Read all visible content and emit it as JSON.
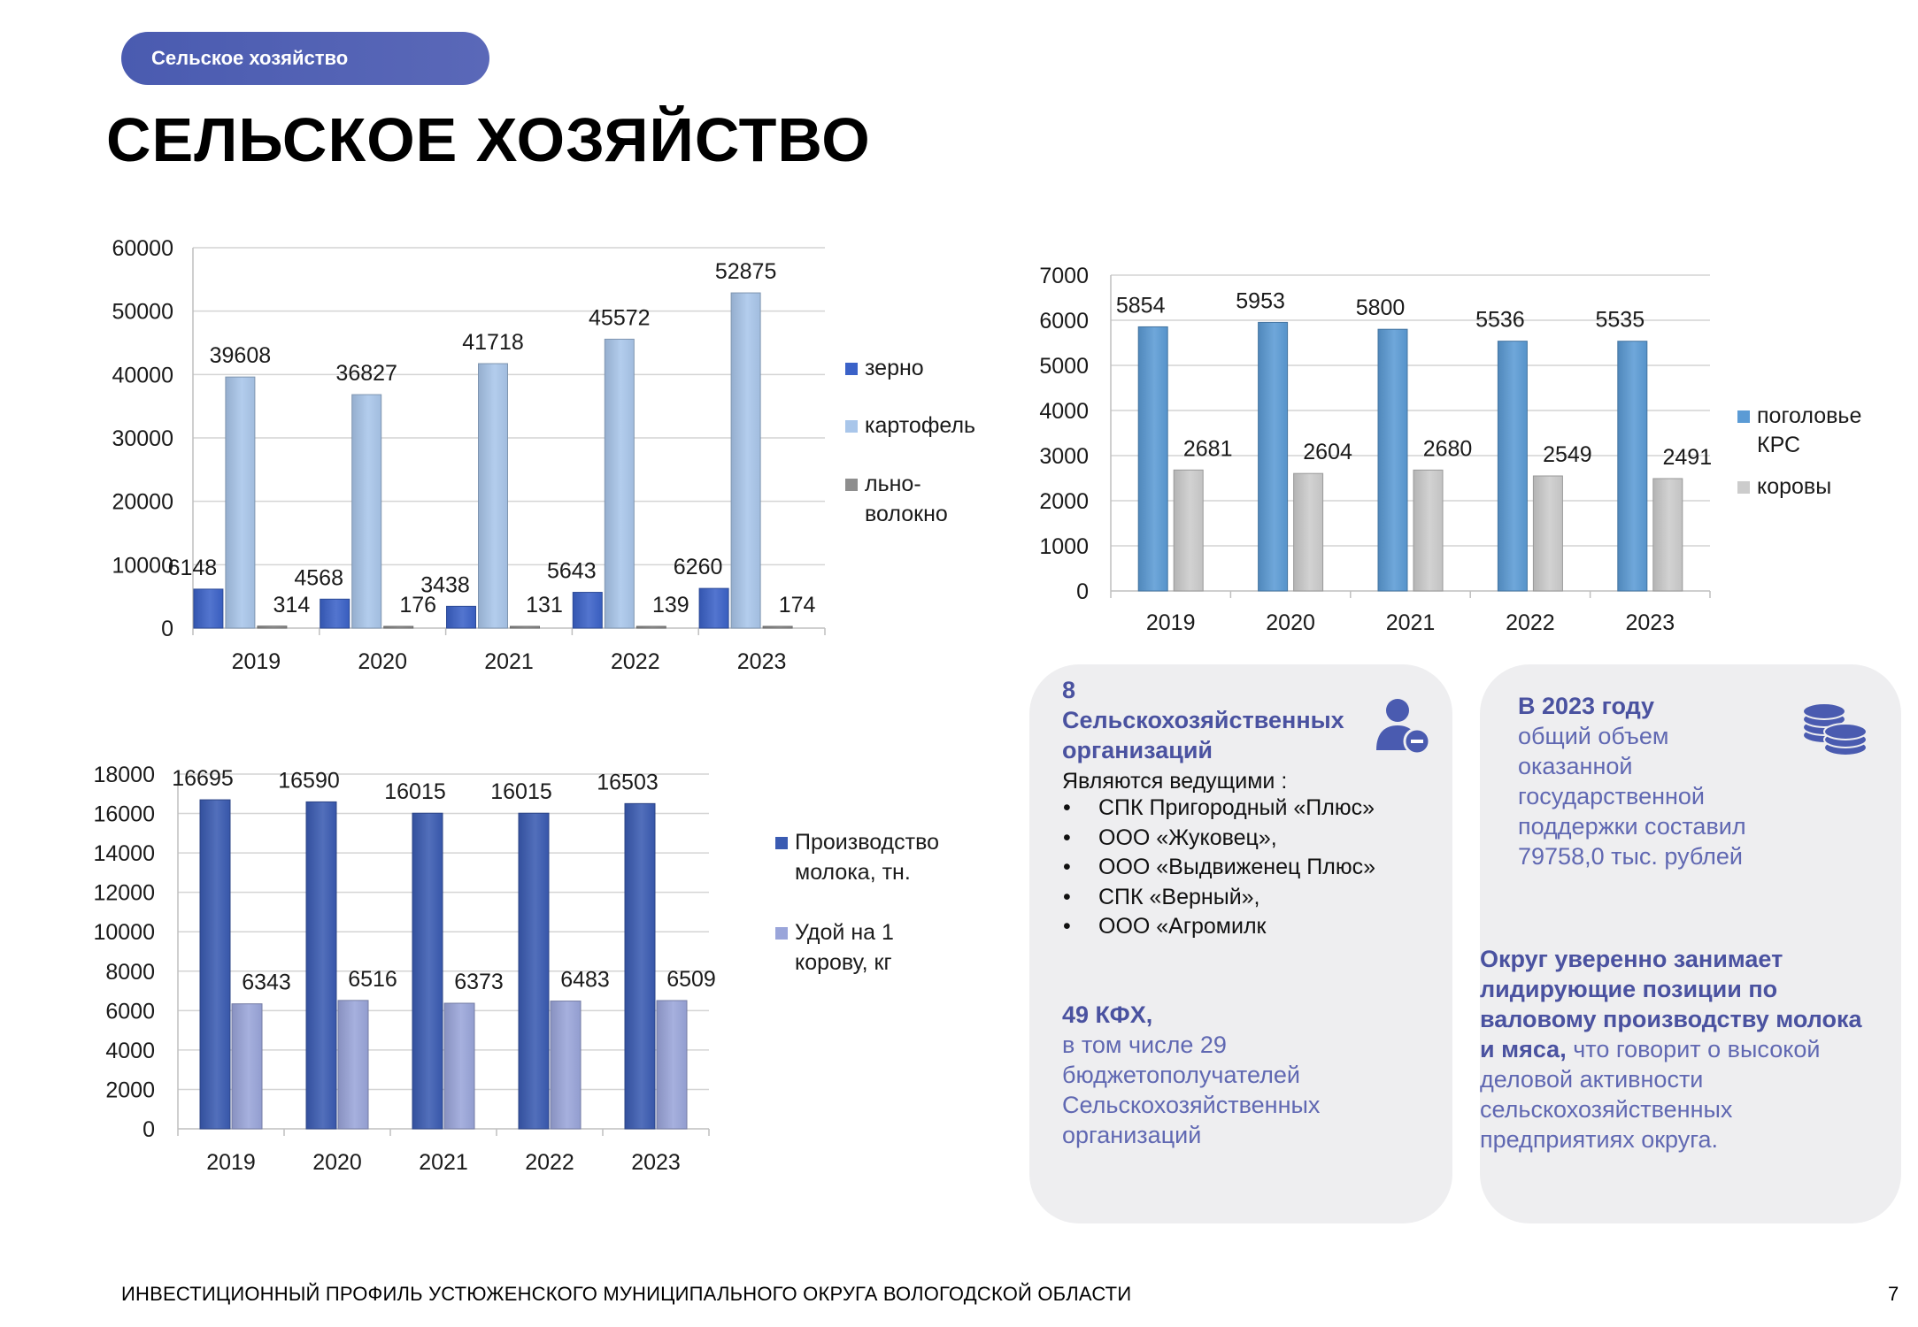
{
  "header": {
    "section_pill": "Сельское хозяйство",
    "title": "СЕЛЬСКОЕ ХОЗЯЙСТВО"
  },
  "chart_data": [
    {
      "type": "bar",
      "categories": [
        "2019",
        "2020",
        "2021",
        "2022",
        "2023"
      ],
      "series": [
        {
          "name": "зерно",
          "values": [
            6148,
            4568,
            3438,
            5643,
            6260
          ],
          "color": "#3b62c8"
        },
        {
          "name": "картофель",
          "values": [
            39608,
            36827,
            41718,
            45572,
            52875
          ],
          "color": "#a9c6ea"
        },
        {
          "name": "льно-волокно",
          "values": [
            314,
            176,
            131,
            139,
            174
          ],
          "color": "#8e8e8e"
        }
      ],
      "legend_lines": [
        [
          "зерно"
        ],
        [
          "картофель"
        ],
        [
          "льно-",
          "волокно"
        ]
      ],
      "ylim": [
        0,
        60000
      ],
      "yticks": [
        "0",
        "10000",
        "20000",
        "30000",
        "40000",
        "50000",
        "60000"
      ],
      "legend": "right",
      "grid": true
    },
    {
      "type": "bar",
      "categories": [
        "2019",
        "2020",
        "2021",
        "2022",
        "2023"
      ],
      "series": [
        {
          "name": "поголовье КРС",
          "values": [
            5854,
            5953,
            5800,
            5536,
            5535
          ],
          "color": "#5b9bd5"
        },
        {
          "name": "коровы",
          "values": [
            2681,
            2604,
            2680,
            2549,
            2491
          ],
          "color": "#cccccc"
        }
      ],
      "legend_lines": [
        [
          "поголовье",
          "КРС"
        ],
        [
          "коровы"
        ]
      ],
      "ylim": [
        0,
        7000
      ],
      "yticks": [
        "0",
        "1000",
        "2000",
        "3000",
        "4000",
        "5000",
        "6000",
        "7000"
      ],
      "legend": "right",
      "grid": true
    },
    {
      "type": "bar",
      "categories": [
        "2019",
        "2020",
        "2021",
        "2022",
        "2023"
      ],
      "series": [
        {
          "name": "Производство молока, тн.",
          "values": [
            16695,
            16590,
            16015,
            16015,
            16503
          ],
          "color": "#3a5bb2"
        },
        {
          "name": "Удой на 1 корову, кг",
          "values": [
            6343,
            6516,
            6373,
            6483,
            6509
          ],
          "color": "#9aa5da"
        }
      ],
      "legend_lines": [
        [
          "Производство",
          "молока, тн."
        ],
        [
          "Удой на 1",
          "корову, кг"
        ]
      ],
      "ylim": [
        0,
        18000
      ],
      "yticks": [
        "0",
        "2000",
        "4000",
        "6000",
        "8000",
        "10000",
        "12000",
        "14000",
        "16000",
        "18000"
      ],
      "legend": "right",
      "grid": true
    }
  ],
  "card_orgs": {
    "count": "8",
    "title_line1": "Сельскохозяйственных",
    "title_line2": "организаций",
    "leaders_label": "Являются ведущими :",
    "leaders": [
      "СПК Пригородный «Плюс»",
      "ООО «Жуковец»,",
      "ООО «Выдвиженец Плюс»",
      "СПК «Верный»,",
      "ООО «Агромилк"
    ],
    "kfh_head": "49 КФХ,",
    "kfh_lines": [
      "в том числе 29",
      "бюджетополучателей",
      "Сельскохозяйственных",
      "организаций"
    ],
    "icon": "user-minus-icon"
  },
  "card_support": {
    "head": "В 2023 году",
    "lines": [
      "общий объем",
      "оказанной",
      "государственной",
      "поддержки составил",
      "79758,0 тыс. рублей"
    ],
    "leader_bold": [
      "Округ уверенно занимает",
      "лидирующие позиции по",
      "валовому производству молока"
    ],
    "leader_bold_tail": "и мяса,",
    "leader_rest_first": " что говорит о высокой",
    "leader_rest": [
      "деловой активности",
      "сельскохозяйственных",
      "предприятиях округа."
    ],
    "icon": "coins-icon"
  },
  "footer": {
    "text": "ИНВЕСТИЦИОННЫЙ ПРОФИЛЬ УСТЮЖЕНСКОГО МУНИЦИПАЛЬНОГО ОКРУГА ВОЛОГОДСКОЙ ОБЛАСТИ",
    "page": "7"
  }
}
